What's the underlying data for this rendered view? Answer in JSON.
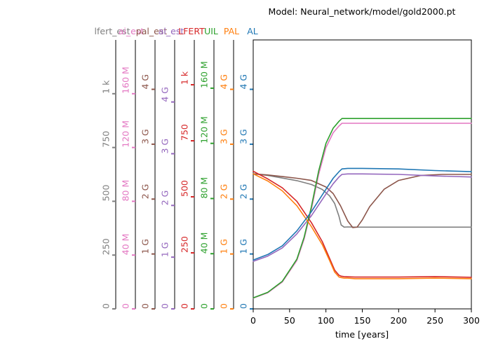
{
  "chart_data": {
    "type": "line",
    "title": "Model: Neural_network/model/gold2000.pt",
    "xlabel": "time [years]",
    "xlim": [
      0,
      300
    ],
    "x_ticks": [
      0,
      50,
      100,
      150,
      200,
      250,
      300
    ],
    "y_axes": [
      {
        "label": "lfert_est",
        "color": "#7f7f7f",
        "max": 1250,
        "ticks": [
          0,
          250,
          500,
          750,
          1000
        ],
        "tick_labels": [
          "0",
          "250",
          "500",
          "750",
          "1 k"
        ]
      },
      {
        "label": "ai_est",
        "color": "#e377c2",
        "max": 200,
        "ticks": [
          0,
          40,
          80,
          120,
          160
        ],
        "tick_labels": [
          "0",
          "40 M",
          "80 M",
          "120 M",
          "160 M"
        ]
      },
      {
        "label": "pal_est",
        "color": "#8c564b",
        "max": 4.9,
        "ticks": [
          0,
          1,
          2,
          3,
          4
        ],
        "tick_labels": [
          "0",
          "1 G",
          "2 G",
          "3 G",
          "4 G"
        ]
      },
      {
        "label": "al_est",
        "color": "#9467bd",
        "max": 5.2,
        "ticks": [
          0,
          1,
          2,
          3,
          4
        ],
        "tick_labels": [
          "0",
          "1 G",
          "2 G",
          "3 G",
          "4 G"
        ]
      },
      {
        "label": "LFERT",
        "color": "#d62728",
        "max": 1200,
        "ticks": [
          0,
          250,
          500,
          750,
          1000
        ],
        "tick_labels": [
          "0",
          "250",
          "500",
          "750",
          "1 k"
        ]
      },
      {
        "label": "UIL",
        "color": "#2ca02c",
        "max": 195,
        "ticks": [
          0,
          40,
          80,
          120,
          160
        ],
        "tick_labels": [
          "0",
          "40 M",
          "80 M",
          "120 M",
          "160 M"
        ]
      },
      {
        "label": "PAL",
        "color": "#ff7f0e",
        "max": 4.9,
        "ticks": [
          0,
          1,
          2,
          3,
          4
        ],
        "tick_labels": [
          "0",
          "1 G",
          "2 G",
          "3 G",
          "4 G"
        ]
      },
      {
        "label": "AL",
        "color": "#1f77b4",
        "max": 4.9,
        "ticks": [
          0,
          1,
          2,
          3,
          4
        ],
        "tick_labels": [
          "0",
          "1 G",
          "2 G",
          "3 G",
          "4 G"
        ]
      }
    ],
    "series": [
      {
        "axis": 0,
        "color": "#7f7f7f",
        "x": [
          0,
          20,
          40,
          60,
          80,
          95,
          105,
          112,
          118,
          121,
          125,
          130,
          140,
          160,
          200,
          250,
          300
        ],
        "y": [
          628,
          620,
          608,
          596,
          578,
          555,
          525,
          490,
          430,
          390,
          380,
          381,
          380,
          380,
          380,
          380,
          380
        ]
      },
      {
        "axis": 1,
        "color": "#e377c2",
        "x": [
          0,
          20,
          40,
          60,
          70,
          80,
          90,
          100,
          110,
          118,
          122,
          130,
          150,
          200,
          250,
          300
        ],
        "y": [
          8,
          12,
          20,
          36,
          52,
          74,
          100,
          120,
          131,
          136,
          138,
          138,
          138,
          138,
          138,
          138
        ]
      },
      {
        "axis": 2,
        "color": "#8c564b",
        "x": [
          0,
          20,
          40,
          60,
          80,
          100,
          110,
          120,
          130,
          137,
          143,
          150,
          160,
          180,
          200,
          230,
          260,
          300
        ],
        "y": [
          2.46,
          2.44,
          2.41,
          2.38,
          2.34,
          2.22,
          2.1,
          1.88,
          1.6,
          1.48,
          1.49,
          1.62,
          1.86,
          2.18,
          2.34,
          2.43,
          2.45,
          2.45
        ]
      },
      {
        "axis": 3,
        "color": "#9467bd",
        "x": [
          0,
          20,
          40,
          60,
          80,
          100,
          110,
          118,
          122,
          130,
          150,
          200,
          250,
          300
        ],
        "y": [
          0.92,
          1.02,
          1.18,
          1.45,
          1.8,
          2.22,
          2.42,
          2.55,
          2.6,
          2.61,
          2.61,
          2.6,
          2.57,
          2.55
        ]
      },
      {
        "axis": 4,
        "color": "#d62728",
        "x": [
          0,
          20,
          40,
          60,
          80,
          95,
          105,
          112,
          118,
          121,
          125,
          130,
          140,
          160,
          200,
          250,
          300
        ],
        "y": [
          614,
          580,
          540,
          480,
          385,
          300,
          225,
          173,
          150,
          146,
          144,
          143,
          142,
          142,
          142,
          144,
          141
        ]
      },
      {
        "axis": 5,
        "color": "#2ca02c",
        "x": [
          0,
          20,
          40,
          60,
          70,
          80,
          90,
          100,
          110,
          118,
          122,
          130,
          150,
          200,
          250,
          300
        ],
        "y": [
          8,
          12,
          20,
          36,
          52,
          74,
          100,
          120,
          131,
          136,
          138,
          138,
          138,
          138,
          138,
          138
        ]
      },
      {
        "axis": 6,
        "color": "#ff7f0e",
        "x": [
          0,
          20,
          40,
          60,
          80,
          95,
          105,
          112,
          118,
          121,
          125,
          130,
          140,
          160,
          200,
          250,
          300
        ],
        "y": [
          2.46,
          2.33,
          2.15,
          1.88,
          1.5,
          1.17,
          0.88,
          0.67,
          0.58,
          0.57,
          0.56,
          0.56,
          0.55,
          0.55,
          0.55,
          0.56,
          0.55
        ]
      },
      {
        "axis": 7,
        "color": "#1f77b4",
        "x": [
          0,
          20,
          40,
          60,
          80,
          100,
          110,
          118,
          122,
          130,
          150,
          200,
          250,
          300
        ],
        "y": [
          0.89,
          0.99,
          1.15,
          1.42,
          1.77,
          2.18,
          2.38,
          2.5,
          2.55,
          2.56,
          2.56,
          2.55,
          2.52,
          2.5
        ]
      }
    ]
  }
}
